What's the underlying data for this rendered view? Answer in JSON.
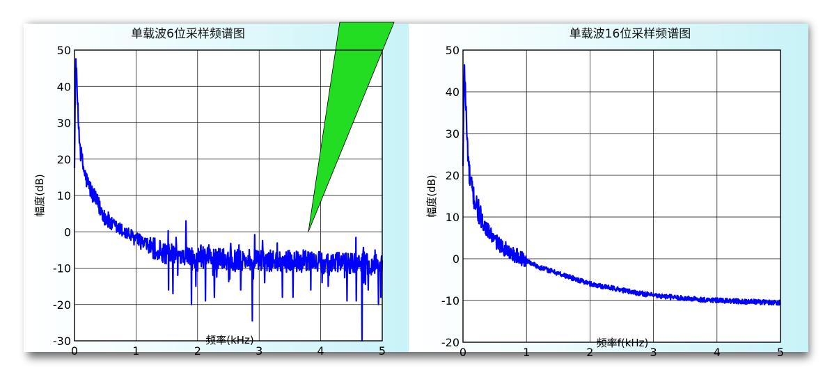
{
  "chart_data": [
    {
      "type": "line",
      "title": "单载波6位采样频谱图",
      "xlabel": "频率(kHz)",
      "ylabel": "幅度(dB)",
      "xlim": [
        0,
        5
      ],
      "ylim": [
        -30,
        50
      ],
      "xticks": [
        "0",
        "1",
        "2",
        "3",
        "4",
        "5"
      ],
      "yticks": [
        "50",
        "40",
        "30",
        "20",
        "10",
        "0",
        "-10",
        "-20",
        "-30"
      ],
      "grid": true,
      "line_color": "#0000ff",
      "annotation_color": "#22dd22",
      "series": [
        {
          "x": [
            0,
            0.02,
            0.04,
            0.06,
            0.08,
            0.1,
            0.15,
            0.2,
            0.3,
            0.4,
            0.5,
            0.6,
            0.8,
            1.0,
            1.2,
            1.5,
            2.0,
            2.5,
            3.0,
            3.5,
            3.8,
            4.0,
            4.5,
            5.0
          ],
          "y": [
            20,
            48,
            40,
            31,
            26,
            22,
            17,
            14,
            10,
            7,
            4,
            2,
            0,
            -2,
            -4,
            -6,
            -7,
            -7.5,
            -8,
            -8,
            -8,
            -8.5,
            -8.5,
            -9
          ]
        }
      ],
      "dips": [
        {
          "x": 1.53,
          "y": -16
        },
        {
          "x": 1.6,
          "y": -17
        },
        {
          "x": 1.68,
          "y": -12
        },
        {
          "x": 1.81,
          "y": 3
        },
        {
          "x": 1.9,
          "y": -20
        },
        {
          "x": 1.97,
          "y": -15
        },
        {
          "x": 2.13,
          "y": -19
        },
        {
          "x": 2.27,
          "y": -18
        },
        {
          "x": 2.52,
          "y": -13
        },
        {
          "x": 2.7,
          "y": -16
        },
        {
          "x": 2.89,
          "y": -24.5
        },
        {
          "x": 3.09,
          "y": -14
        },
        {
          "x": 3.38,
          "y": -18
        },
        {
          "x": 3.55,
          "y": -18
        },
        {
          "x": 3.84,
          "y": -16
        },
        {
          "x": 4.02,
          "y": -14
        },
        {
          "x": 4.12,
          "y": -15
        },
        {
          "x": 4.43,
          "y": -19
        },
        {
          "x": 4.58,
          "y": -19
        },
        {
          "x": 4.67,
          "y": -30
        },
        {
          "x": 4.77,
          "y": -16
        },
        {
          "x": 4.94,
          "y": -20
        },
        {
          "x": 4.98,
          "y": -18
        }
      ]
    },
    {
      "type": "line",
      "title": "单载波16位采样频谱图",
      "xlabel": "频率f(kHz)",
      "ylabel": "幅度(dB)",
      "xlim": [
        0,
        5
      ],
      "ylim": [
        -20,
        50
      ],
      "xticks": [
        "0",
        "1",
        "2",
        "3",
        "4",
        "5"
      ],
      "yticks": [
        "50",
        "40",
        "30",
        "20",
        "10",
        "0",
        "-10",
        "-20"
      ],
      "grid": true,
      "line_color": "#0000ff",
      "series": [
        {
          "x": [
            0,
            0.02,
            0.04,
            0.06,
            0.08,
            0.1,
            0.15,
            0.2,
            0.3,
            0.4,
            0.5,
            0.6,
            0.8,
            1.0,
            1.2,
            1.5,
            2.0,
            2.5,
            3.0,
            3.5,
            4.0,
            4.5,
            5.0
          ],
          "y": [
            22,
            47,
            39,
            30,
            25,
            20,
            16,
            13,
            9,
            6.5,
            4.5,
            3,
            1,
            -0.5,
            -2,
            -3.5,
            -6,
            -7.5,
            -8.8,
            -9.5,
            -10,
            -10.3,
            -10.5
          ]
        }
      ]
    }
  ]
}
